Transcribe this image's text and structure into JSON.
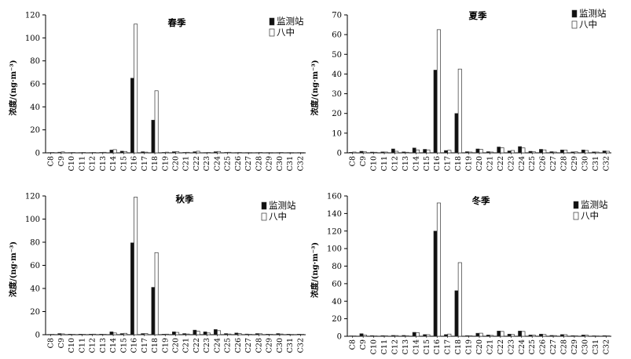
{
  "legend": {
    "station_label": "监测站",
    "school_label": "八中"
  },
  "colors": {
    "station": "#111111",
    "school": "#ffffff",
    "bar_stroke": "#333333",
    "axis": "#000000"
  },
  "chart_data": [
    {
      "type": "bar",
      "title": "春季",
      "ylabel": "浓度/(ng·m⁻³)",
      "ylim": [
        0,
        120
      ],
      "yticks": [
        0,
        20,
        40,
        60,
        80,
        100,
        120
      ],
      "legend_position": "top-right",
      "categories": [
        "C8",
        "C9",
        "C10",
        "C11",
        "C12",
        "C13",
        "C14",
        "C15",
        "C16",
        "C17",
        "C18",
        "C19",
        "C20",
        "C21",
        "C22",
        "C23",
        "C24",
        "C25",
        "C26",
        "C27",
        "C28",
        "C29",
        "C30",
        "C31",
        "C32"
      ],
      "series": [
        {
          "name": "监测站",
          "values": [
            0.3,
            0.6,
            0.3,
            0.3,
            0.3,
            0.4,
            2.5,
            1.5,
            65,
            1.0,
            28.5,
            0.4,
            1.0,
            0.4,
            1.0,
            0.3,
            1.0,
            0.4,
            0.3,
            0.3,
            0.3,
            0.3,
            0.3,
            0.3,
            0.3
          ]
        },
        {
          "name": "八中",
          "values": [
            0.4,
            0.8,
            0.4,
            0.4,
            0.4,
            0.5,
            2.8,
            1.2,
            112,
            0.6,
            54,
            0.6,
            1.0,
            0.5,
            1.4,
            0.4,
            1.2,
            0.5,
            0.4,
            0.3,
            0.4,
            0.3,
            0.4,
            0.3,
            0.3
          ]
        }
      ]
    },
    {
      "type": "bar",
      "title": "夏季",
      "ylabel": "浓度/(ng·m⁻³)",
      "ylim": [
        0,
        70
      ],
      "yticks": [
        0,
        10,
        20,
        30,
        40,
        50,
        60,
        70
      ],
      "legend_position": "top-right",
      "categories": [
        "C8",
        "C9",
        "C10",
        "C11",
        "C12",
        "C13",
        "C14",
        "C15",
        "C16",
        "C17",
        "C18",
        "C19",
        "C20",
        "C21",
        "C22",
        "C23",
        "C24",
        "C25",
        "C26",
        "C27",
        "C28",
        "C29",
        "C30",
        "C31",
        "C32"
      ],
      "series": [
        {
          "name": "监测站",
          "values": [
            0.3,
            0.8,
            0.4,
            0.5,
            2.0,
            0.5,
            2.5,
            1.8,
            42,
            1.2,
            20,
            0.6,
            2.0,
            0.6,
            3.0,
            1.0,
            3.2,
            0.8,
            1.8,
            0.6,
            1.5,
            0.5,
            1.5,
            0.5,
            1.0
          ]
        },
        {
          "name": "八中",
          "values": [
            0.4,
            0.5,
            0.3,
            0.4,
            0.8,
            0.3,
            1.5,
            1.5,
            62.5,
            1.3,
            42.5,
            0.4,
            1.8,
            0.4,
            2.6,
            1.2,
            2.5,
            0.5,
            1.5,
            0.4,
            1.4,
            0.5,
            1.2,
            0.4,
            0.8
          ]
        }
      ]
    },
    {
      "type": "bar",
      "title": "秋季",
      "ylabel": "浓度/(ng·m⁻³)",
      "ylim": [
        0,
        120
      ],
      "yticks": [
        0,
        20,
        40,
        60,
        80,
        100,
        120
      ],
      "legend_position": "top-right",
      "categories": [
        "C8",
        "C9",
        "C10",
        "C11",
        "C12",
        "C13",
        "C14",
        "C15",
        "C16",
        "C17",
        "C18",
        "C19",
        "C20",
        "C21",
        "C22",
        "C23",
        "C24",
        "C25",
        "C26",
        "C27",
        "C28",
        "C29",
        "C30",
        "C31",
        "C32"
      ],
      "series": [
        {
          "name": "监测站",
          "values": [
            0.3,
            1.0,
            0.5,
            0.5,
            0.5,
            0.5,
            2.5,
            1.0,
            79.5,
            1.0,
            41,
            0.5,
            2.5,
            1.0,
            4.0,
            2.5,
            4.5,
            1.0,
            1.5,
            0.6,
            1.0,
            0.5,
            1.0,
            0.5,
            0.5
          ]
        },
        {
          "name": "八中",
          "values": [
            0.4,
            0.7,
            0.4,
            0.4,
            0.5,
            0.4,
            1.5,
            1.2,
            119,
            1.0,
            71,
            0.5,
            2.0,
            0.6,
            3.0,
            1.5,
            3.5,
            0.6,
            1.0,
            0.4,
            0.8,
            0.4,
            0.6,
            0.3,
            0.4
          ]
        }
      ]
    },
    {
      "type": "bar",
      "title": "冬季",
      "ylabel": "浓度/(ng·m⁻³)",
      "ylim": [
        0,
        160
      ],
      "yticks": [
        0,
        20,
        40,
        60,
        80,
        100,
        120,
        140,
        160
      ],
      "legend_position": "top-right",
      "categories": [
        "C8",
        "C9",
        "C10",
        "C11",
        "C12",
        "C13",
        "C14",
        "C15",
        "C16",
        "C17",
        "C18",
        "C19",
        "C20",
        "C21",
        "C22",
        "C23",
        "C24",
        "C25",
        "C26",
        "C27",
        "C28",
        "C29",
        "C30",
        "C31",
        "C32"
      ],
      "series": [
        {
          "name": "监测站",
          "values": [
            0.5,
            3.0,
            0.8,
            0.8,
            1.0,
            1.0,
            4.5,
            2.0,
            120,
            2.0,
            52,
            0.8,
            3.5,
            1.5,
            6.0,
            2.5,
            6.0,
            1.5,
            2.5,
            1.0,
            2.0,
            0.8,
            1.5,
            0.6,
            0.8
          ]
        },
        {
          "name": "八中",
          "values": [
            0.5,
            1.5,
            0.5,
            0.6,
            0.8,
            0.6,
            4.0,
            1.8,
            152,
            2.5,
            84,
            0.6,
            3.5,
            1.0,
            5.5,
            2.0,
            5.5,
            1.2,
            2.0,
            0.8,
            1.8,
            0.6,
            1.2,
            0.5,
            0.6
          ]
        }
      ]
    }
  ]
}
